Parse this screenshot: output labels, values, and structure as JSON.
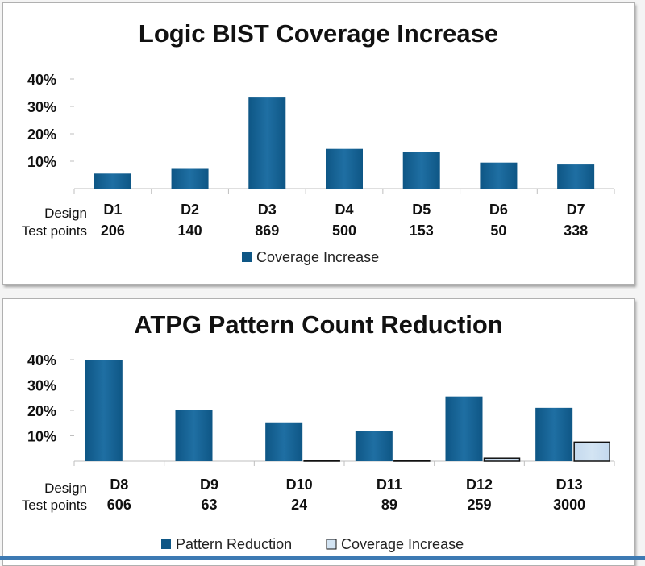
{
  "charts": [
    {
      "title": "Logic BIST Coverage Increase",
      "row_labels": [
        "Design",
        "Test points"
      ],
      "legend": [
        "Coverage Increase"
      ]
    },
    {
      "title": "ATPG Pattern Count Reduction",
      "row_labels": [
        "Design",
        "Test points"
      ],
      "legend": [
        "Pattern Reduction",
        "Coverage Increase"
      ]
    }
  ],
  "colors": {
    "bar_dark": "#0e5685",
    "bar_mid": "#1f6fa3",
    "bar_light": "#d3e4f3",
    "bar_light_edge": "#111111",
    "axis": "#bfbfbf"
  },
  "chart_data": [
    {
      "type": "bar",
      "title": "Logic BIST Coverage Increase",
      "categories": [
        "D1",
        "D2",
        "D3",
        "D4",
        "D5",
        "D6",
        "D7"
      ],
      "test_points": [
        "206",
        "140",
        "869",
        "500",
        "153",
        "50",
        "338"
      ],
      "series": [
        {
          "name": "Coverage Increase",
          "values": [
            5.5,
            7.5,
            33.5,
            14.5,
            13.5,
            9.5,
            8.8
          ]
        }
      ],
      "yticks": [
        "10%",
        "20%",
        "30%",
        "40%"
      ],
      "ylim": [
        0,
        40
      ],
      "legend_position": "bottom",
      "grid": false
    },
    {
      "type": "bar",
      "title": "ATPG Pattern Count Reduction",
      "categories": [
        "D8",
        "D9",
        "D10",
        "D11",
        "D12",
        "D13"
      ],
      "test_points": [
        "606",
        "63",
        "24",
        "89",
        "259",
        "3000"
      ],
      "series": [
        {
          "name": "Pattern Reduction",
          "values": [
            40,
            20,
            15,
            12,
            25.5,
            21
          ]
        },
        {
          "name": "Coverage Increase",
          "values": [
            0,
            0,
            0.3,
            0.3,
            1.2,
            7.5
          ]
        }
      ],
      "yticks": [
        "10%",
        "20%",
        "30%",
        "40%"
      ],
      "ylim": [
        0,
        40
      ],
      "legend_position": "bottom",
      "grid": false
    }
  ]
}
